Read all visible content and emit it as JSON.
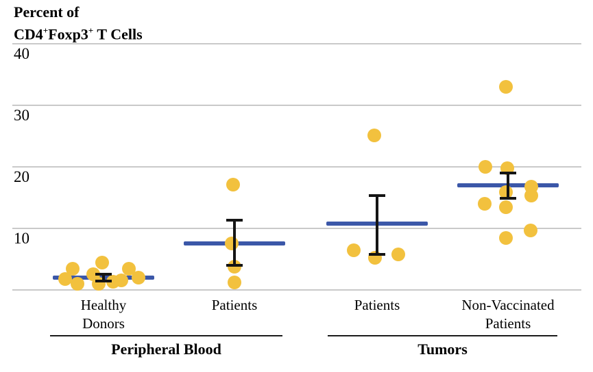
{
  "header": {
    "title_line1": "Percent of",
    "cd4": "CD4",
    "sup_plus1": "+",
    "foxp3": "Foxp3",
    "sup_plus2": "+",
    "tcells": " T Cells"
  },
  "colors": {
    "dot": "#f2c13e",
    "mean_bar": "#3b57a8",
    "grid": "#c9c9c9",
    "section_line": "#1a1a1a",
    "text": "#000000"
  },
  "chart_data": {
    "type": "scatter",
    "title": "Percent of CD4+Foxp3+ T Cells",
    "ylabel": "Percent of CD4+Foxp3+ T Cells",
    "ylim": [
      0,
      40
    ],
    "yticks": [
      40,
      30,
      20,
      10
    ],
    "grid": true,
    "marker": "filled-circle",
    "groups": [
      {
        "label_lines": [
          "Healthy",
          "Donors"
        ],
        "section": "Peripheral Blood",
        "mean": 2.0,
        "error_high": 2.6,
        "error_low": 1.5,
        "points": [
          {
            "dx": -45,
            "v": 3.4
          },
          {
            "dx": -56,
            "v": 1.8
          },
          {
            "dx": -38,
            "v": 1.0
          },
          {
            "dx": -15,
            "v": 2.6
          },
          {
            "dx": -2,
            "v": 4.4
          },
          {
            "dx": -7,
            "v": 1.0
          },
          {
            "dx": 14,
            "v": 1.3
          },
          {
            "dx": 26,
            "v": 1.6
          },
          {
            "dx": 37,
            "v": 3.5
          },
          {
            "dx": 51,
            "v": 2.0
          }
        ]
      },
      {
        "label_lines": [
          "Patients"
        ],
        "section": "Peripheral Blood",
        "mean": 7.6,
        "error_high": 11.3,
        "error_low": 4.0,
        "points": [
          {
            "dx": -2,
            "v": 17.1
          },
          {
            "dx": -4,
            "v": 7.6
          },
          {
            "dx": 0,
            "v": 3.8
          },
          {
            "dx": 0,
            "v": 1.2
          }
        ]
      },
      {
        "label_lines": [
          "Patients"
        ],
        "section": "Tumors",
        "mean": 10.8,
        "error_high": 15.3,
        "error_low": 5.8,
        "points": [
          {
            "dx": -4,
            "v": 25.1
          },
          {
            "dx": -34,
            "v": 6.4
          },
          {
            "dx": -3,
            "v": 5.2
          },
          {
            "dx": 31,
            "v": 5.8
          }
        ]
      },
      {
        "label_lines": [
          "Non-Vaccinated",
          "Patients"
        ],
        "section": "Tumors",
        "mean": 17.0,
        "error_high": 19.0,
        "error_low": 14.9,
        "points": [
          {
            "dx": -3,
            "v": 33.0
          },
          {
            "dx": -33,
            "v": 20.0
          },
          {
            "dx": -1,
            "v": 19.8
          },
          {
            "dx": 34,
            "v": 16.8
          },
          {
            "dx": -3,
            "v": 15.9
          },
          {
            "dx": 34,
            "v": 15.3
          },
          {
            "dx": -34,
            "v": 14.0
          },
          {
            "dx": -3,
            "v": 13.4
          },
          {
            "dx": 33,
            "v": 9.7
          },
          {
            "dx": -3,
            "v": 8.4
          }
        ]
      }
    ],
    "sections": [
      {
        "label": "Peripheral Blood"
      },
      {
        "label": "Tumors"
      }
    ]
  }
}
